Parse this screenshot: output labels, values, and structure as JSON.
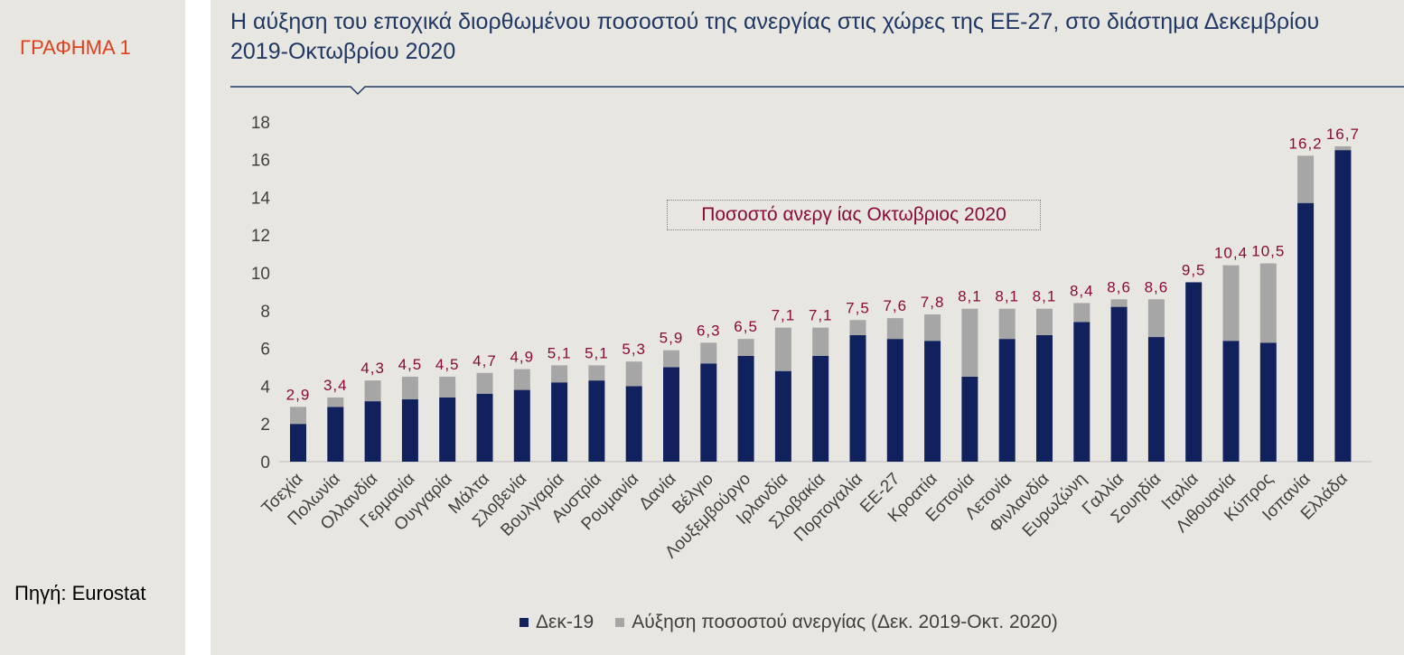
{
  "graph_label": "ΓΡΑΦΗΜΑ 1",
  "source": "Πηγή: Eurostat",
  "title": "Η αύξηση του εποχικά διορθωμένου ποσοστού της ανεργίας στις χώρες της ΕΕ-27, στο διάστημα Δεκεμβρίου 2019-Οκτωβρίου 2020",
  "colors": {
    "dec19": "#10215e",
    "increase": "#a6a6a6",
    "data_label": "#8b0a3a",
    "title": "#1f3864",
    "label": "#e0401e"
  },
  "annotation": "Ποσοστό ανεργ ίας Οκτωβριος 2020",
  "chart_data": {
    "type": "bar",
    "stacked": true,
    "ylim": [
      0,
      18
    ],
    "yticks": [
      0,
      2,
      4,
      6,
      8,
      10,
      12,
      14,
      16,
      18
    ],
    "categories": [
      "Τσεχία",
      "Πολωνία",
      "Ολλανδία",
      "Γερμανία",
      "Ουγγαρία",
      "Μάλτα",
      "Σλοβενία",
      "Βουλγαρία",
      "Αυστρία",
      "Ρουμανία",
      "Δανία",
      "Βέλγιο",
      "Λουξεμβούργο",
      "Ιρλανδία",
      "Σλοβακία",
      "Πορτογαλία",
      "ΕΕ-27",
      "Κροατία",
      "Εστονία",
      "Λετονία",
      "Φινλανδία",
      "Ευρωζώνη",
      "Γαλλία",
      "Σουηδία",
      "Ιταλία",
      "Λιθουανία",
      "Κύπρος",
      "Ισπανία",
      "Ελλάδα"
    ],
    "series": [
      {
        "name": "Δεκ-19",
        "values": [
          2.0,
          2.9,
          3.2,
          3.3,
          3.4,
          3.6,
          3.8,
          4.2,
          4.3,
          4.0,
          5.0,
          5.2,
          5.6,
          4.8,
          5.6,
          6.7,
          6.5,
          6.4,
          4.5,
          6.5,
          6.7,
          7.4,
          8.2,
          6.6,
          9.5,
          6.4,
          6.3,
          13.7,
          16.5
        ]
      },
      {
        "name": "Αύξηση ποσοστού ανεργίας (Δεκ. 2019-Οκτ. 2020)",
        "values": [
          0.9,
          0.5,
          1.1,
          1.2,
          1.1,
          1.1,
          1.1,
          0.9,
          0.8,
          1.3,
          0.9,
          1.1,
          0.9,
          2.3,
          1.5,
          0.8,
          1.1,
          1.4,
          3.6,
          1.6,
          1.4,
          1.0,
          0.4,
          2.0,
          0.0,
          4.0,
          4.2,
          2.5,
          0.2
        ]
      }
    ],
    "data_labels": [
      "2,9",
      "3,4",
      "4,3",
      "4,5",
      "4,5",
      "4,7",
      "4,9",
      "5,1",
      "5,1",
      "5,3",
      "5,9",
      "6,3",
      "6,5",
      "7,1",
      "7,1",
      "7,5",
      "7,6",
      "7,8",
      "8,1",
      "8,1",
      "8,1",
      "8,4",
      "8,6",
      "8,6",
      "9,5",
      "10,4",
      "10,5",
      "16,2",
      "16,7"
    ],
    "legend_position": "bottom"
  }
}
